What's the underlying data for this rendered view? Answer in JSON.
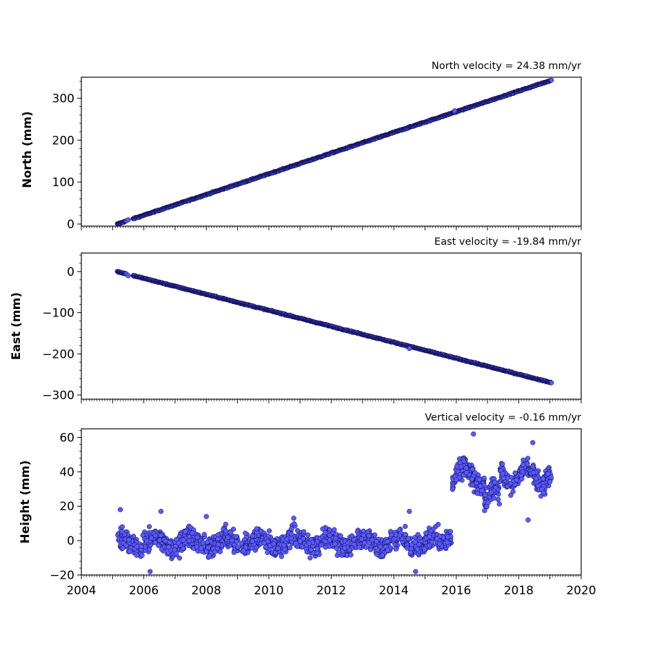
{
  "figure": {
    "marker_fill": "#5a5aff",
    "marker_edge": "#000033",
    "axes_color": "#000000"
  },
  "chart_data": [
    {
      "type": "scatter",
      "title": "North velocity = 24.38 mm/yr",
      "ylabel": "North (mm)",
      "xlim": [
        2004,
        2020
      ],
      "ylim": [
        -5,
        350
      ],
      "x_ticks": [
        "2004",
        "2006",
        "2008",
        "2010",
        "2012",
        "2014",
        "2016",
        "2018",
        "2020"
      ],
      "y_ticks": [
        "0",
        "100",
        "200",
        "300"
      ],
      "y_tick_values": [
        0,
        100,
        200,
        300
      ],
      "trend": {
        "start_year": 2005.15,
        "end_year": 2019.05,
        "start_value": 0,
        "end_value": 343
      },
      "outliers": [
        [
          2005.5,
          10
        ],
        [
          2015.95,
          270
        ]
      ]
    },
    {
      "type": "scatter",
      "title": "East velocity = -19.84 mm/yr",
      "ylabel": "East (mm)",
      "xlim": [
        2004,
        2020
      ],
      "ylim": [
        -310,
        45
      ],
      "x_ticks": [
        "2004",
        "2006",
        "2008",
        "2010",
        "2012",
        "2014",
        "2016",
        "2018",
        "2020"
      ],
      "y_ticks": [
        "0",
        "−100",
        "−200",
        "−300"
      ],
      "y_tick_values": [
        0,
        -100,
        -200,
        -300
      ],
      "trend": {
        "start_year": 2005.15,
        "end_year": 2019.05,
        "start_value": 0,
        "end_value": -270
      },
      "outliers": [
        [
          2005.5,
          -10
        ],
        [
          2014.5,
          -187
        ]
      ]
    },
    {
      "type": "scatter",
      "title": "Vertical velocity = -0.16 mm/yr",
      "ylabel": "Height (mm)",
      "xlabel": "",
      "xlim": [
        2004,
        2020
      ],
      "ylim": [
        -20,
        65
      ],
      "x_ticks": [
        "2004",
        "2006",
        "2008",
        "2010",
        "2012",
        "2014",
        "2016",
        "2018",
        "2020"
      ],
      "y_ticks": [
        "−20",
        "0",
        "20",
        "40",
        "60"
      ],
      "y_tick_values": [
        -20,
        0,
        20,
        40,
        60
      ],
      "segments": [
        {
          "start_year": 2005.15,
          "end_year": 2015.85,
          "mean": -1
        },
        {
          "start_year": 2015.85,
          "end_year": 2019.05,
          "mean": 38
        }
      ],
      "outliers": [
        [
          2005.25,
          18
        ],
        [
          2006.2,
          -18
        ],
        [
          2006.55,
          17
        ],
        [
          2008.0,
          14
        ],
        [
          2010.8,
          13
        ],
        [
          2014.5,
          17
        ],
        [
          2014.7,
          -18
        ],
        [
          2016.55,
          62
        ],
        [
          2018.45,
          57
        ],
        [
          2018.3,
          12
        ]
      ]
    }
  ]
}
